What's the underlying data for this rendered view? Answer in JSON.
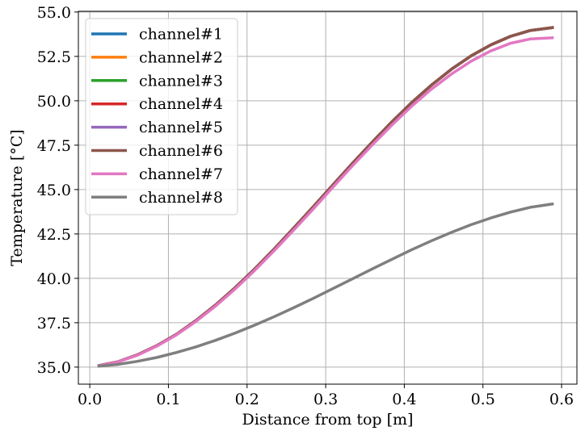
{
  "chart_data": {
    "type": "line",
    "title": "",
    "xlabel": "Distance from top [m]",
    "ylabel": "Temperature [°C]",
    "xlim": [
      -0.0145,
      0.6195
    ],
    "ylim": [
      34.04,
      55.04
    ],
    "xticks": [
      0.0,
      0.1,
      0.2,
      0.3,
      0.4,
      0.5,
      0.6
    ],
    "xtick_labels": [
      "0.0",
      "0.1",
      "0.2",
      "0.3",
      "0.4",
      "0.5",
      "0.6"
    ],
    "yticks": [
      35.0,
      37.5,
      40.0,
      42.5,
      45.0,
      47.5,
      50.0,
      52.5,
      55.0
    ],
    "ytick_labels": [
      "35.0",
      "37.5",
      "40.0",
      "42.5",
      "45.0",
      "47.5",
      "50.0",
      "52.5",
      "55.0"
    ],
    "grid": true,
    "legend_position": "upper-left",
    "x": [
      0.01,
      0.035,
      0.06,
      0.085,
      0.11,
      0.135,
      0.16,
      0.185,
      0.21,
      0.235,
      0.26,
      0.285,
      0.31,
      0.335,
      0.36,
      0.385,
      0.41,
      0.435,
      0.46,
      0.485,
      0.51,
      0.535,
      0.56,
      0.59
    ],
    "series": [
      {
        "name": "channel#1",
        "color": "#1f77b4",
        "values": [
          35.07,
          35.29,
          35.68,
          36.2,
          36.84,
          37.62,
          38.5,
          39.48,
          40.54,
          41.67,
          42.86,
          44.07,
          45.3,
          46.52,
          47.71,
          48.85,
          49.92,
          50.9,
          51.78,
          52.53,
          53.15,
          53.63,
          53.96,
          54.13
        ]
      },
      {
        "name": "channel#2",
        "color": "#ff7f0e",
        "values": [
          35.07,
          35.29,
          35.68,
          36.2,
          36.84,
          37.62,
          38.5,
          39.48,
          40.54,
          41.67,
          42.86,
          44.07,
          45.3,
          46.52,
          47.71,
          48.85,
          49.92,
          50.9,
          51.78,
          52.53,
          53.15,
          53.63,
          53.96,
          54.13
        ]
      },
      {
        "name": "channel#3",
        "color": "#2ca02c",
        "values": [
          35.07,
          35.29,
          35.68,
          36.2,
          36.84,
          37.62,
          38.5,
          39.48,
          40.54,
          41.67,
          42.86,
          44.07,
          45.3,
          46.52,
          47.71,
          48.85,
          49.92,
          50.9,
          51.78,
          52.53,
          53.15,
          53.63,
          53.96,
          54.13
        ]
      },
      {
        "name": "channel#4",
        "color": "#d62728",
        "values": [
          35.07,
          35.29,
          35.68,
          36.2,
          36.84,
          37.62,
          38.5,
          39.48,
          40.54,
          41.67,
          42.86,
          44.07,
          45.3,
          46.52,
          47.71,
          48.85,
          49.92,
          50.9,
          51.78,
          52.53,
          53.15,
          53.63,
          53.96,
          54.13
        ]
      },
      {
        "name": "channel#5",
        "color": "#9467bd",
        "values": [
          35.07,
          35.29,
          35.68,
          36.2,
          36.84,
          37.62,
          38.5,
          39.48,
          40.54,
          41.67,
          42.86,
          44.07,
          45.3,
          46.52,
          47.71,
          48.85,
          49.92,
          50.9,
          51.78,
          52.53,
          53.15,
          53.63,
          53.96,
          54.13
        ]
      },
      {
        "name": "channel#6",
        "color": "#8c564b",
        "values": [
          35.07,
          35.29,
          35.68,
          36.2,
          36.84,
          37.62,
          38.5,
          39.48,
          40.54,
          41.67,
          42.86,
          44.07,
          45.3,
          46.52,
          47.71,
          48.85,
          49.92,
          50.9,
          51.78,
          52.53,
          53.15,
          53.63,
          53.96,
          54.13
        ]
      },
      {
        "name": "channel#7",
        "color": "#e377c2",
        "values": [
          35.06,
          35.28,
          35.66,
          36.17,
          36.81,
          37.57,
          38.44,
          39.41,
          40.46,
          41.58,
          42.75,
          43.95,
          45.17,
          46.38,
          47.55,
          48.67,
          49.72,
          50.67,
          51.51,
          52.23,
          52.81,
          53.24,
          53.48,
          53.55
        ]
      },
      {
        "name": "channel#8",
        "color": "#7f7f7f",
        "values": [
          35.05,
          35.15,
          35.32,
          35.54,
          35.82,
          36.14,
          36.51,
          36.92,
          37.37,
          37.85,
          38.36,
          38.89,
          39.44,
          39.99,
          40.55,
          41.09,
          41.62,
          42.12,
          42.59,
          43.02,
          43.4,
          43.73,
          44.0,
          44.2
        ]
      }
    ]
  }
}
